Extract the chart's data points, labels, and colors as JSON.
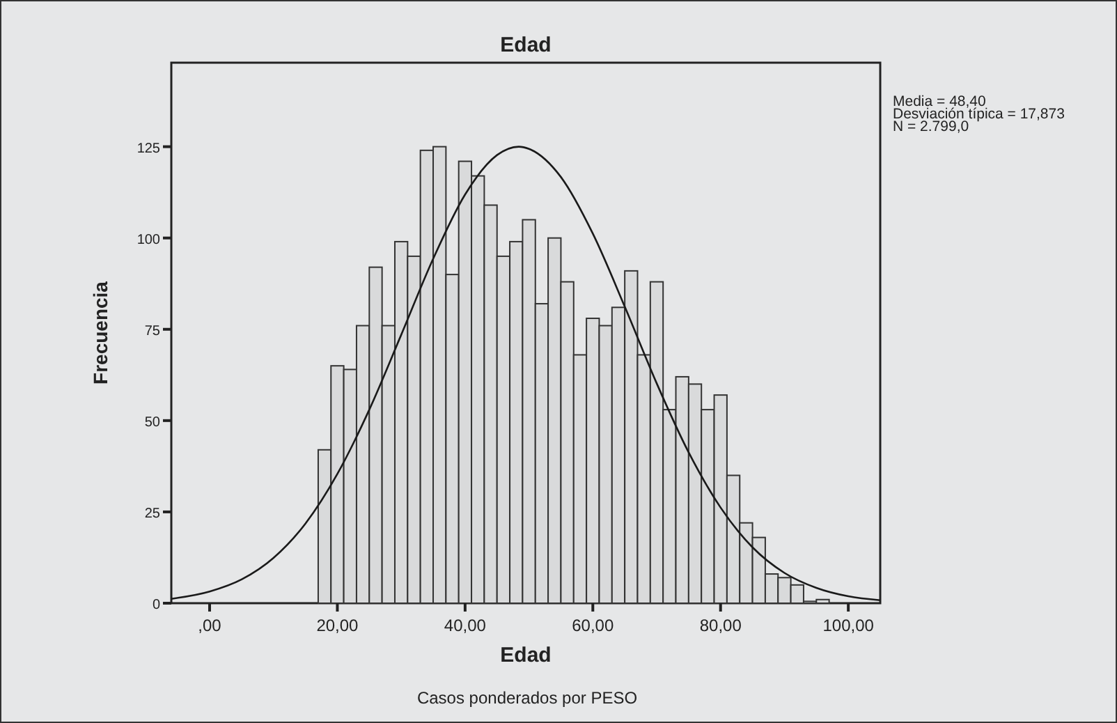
{
  "chart_data": {
    "type": "histogram",
    "title": "Edad",
    "xlabel": "Edad",
    "ylabel": "Frecuencia",
    "bins": [
      17,
      19,
      21,
      23,
      25,
      27,
      29,
      31,
      33,
      35,
      37,
      39,
      41,
      43,
      45,
      47,
      49,
      51,
      53,
      55,
      57,
      59,
      61,
      63,
      65,
      67,
      69,
      71,
      73,
      75,
      77,
      79,
      81,
      83,
      85,
      87,
      89,
      91,
      93,
      95,
      97
    ],
    "values": [
      42,
      65,
      64,
      76,
      92,
      76,
      99,
      95,
      124,
      125,
      90,
      121,
      117,
      109,
      95,
      99,
      105,
      82,
      100,
      88,
      68,
      78,
      76,
      81,
      91,
      68,
      88,
      53,
      62,
      60,
      53,
      57,
      35,
      22,
      18,
      8,
      7,
      5,
      0.5,
      1
    ],
    "color": "#d9dadb",
    "series": [
      {
        "type": "line",
        "color": "#1a1a1a",
        "x": [
          -6,
          0,
          5,
          10,
          15,
          20,
          25,
          30,
          35,
          40,
          45,
          48.4,
          50,
          55,
          60,
          65,
          70,
          75,
          80,
          85,
          90,
          95,
          100,
          105
        ],
        "values": [
          1.2,
          3.2,
          6.5,
          12.4,
          21.8,
          35.4,
          53,
          73.5,
          94.3,
          111.9,
          122.7,
          125,
          124.4,
          116.7,
          101.2,
          81.2,
          60.2,
          41.3,
          26.2,
          15.3,
          8.3,
          4.2,
          1.9,
          0.8
        ]
      }
    ],
    "xlim": [
      -6,
      105
    ],
    "ylim": [
      0,
      148
    ],
    "xticks": [
      {
        "value": 0,
        "label": ",00"
      },
      {
        "value": 20,
        "label": "20,00"
      },
      {
        "value": 40,
        "label": "40,00"
      },
      {
        "value": 60,
        "label": "60,00"
      },
      {
        "value": 80,
        "label": "80,00"
      },
      {
        "value": 100,
        "label": "100,00"
      }
    ],
    "yticks": [
      0,
      25,
      50,
      75,
      100,
      125
    ],
    "grid": false,
    "annotations": [
      "Media = 48,40",
      "Desviación típica = 17,873",
      "N = 2.799,0",
      "Casos ponderados por PESO"
    ]
  }
}
